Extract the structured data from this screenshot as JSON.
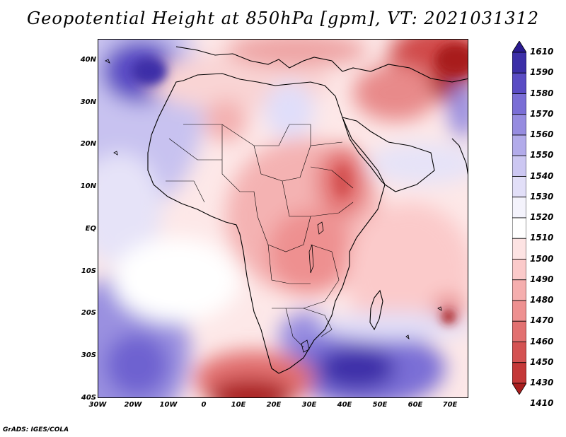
{
  "title": "Geopotential Height at 850hPa [gpm], VT: 2021031312",
  "credit": "GrADS: IGES/COLA",
  "axes": {
    "lat_labels": [
      "40N",
      "30N",
      "20N",
      "10N",
      "EQ",
      "10S",
      "20S",
      "30S",
      "40S"
    ],
    "lon_labels": [
      "30W",
      "20W",
      "10W",
      "0",
      "10E",
      "20E",
      "30E",
      "40E",
      "50E",
      "60E",
      "70E"
    ]
  },
  "colorbar": {
    "labels": [
      "1610",
      "1590",
      "1580",
      "1570",
      "1560",
      "1550",
      "1540",
      "1530",
      "1520",
      "1510",
      "1500",
      "1490",
      "1480",
      "1470",
      "1460",
      "1450",
      "1430",
      "1410"
    ],
    "colors": [
      "#2a1a90",
      "#3c2fa8",
      "#5a4cc4",
      "#7a6ed6",
      "#968ce0",
      "#b2abea",
      "#ccc7f2",
      "#e2dff8",
      "#f4f3fc",
      "#ffffff",
      "#fde3e3",
      "#fbcaca",
      "#f5aeae",
      "#ee9090",
      "#e27070",
      "#d45252",
      "#c43838",
      "#a81e1e"
    ]
  },
  "chart_data": {
    "type": "heatmap",
    "title": "Geopotential Height at 850hPa [gpm], VT: 2021031312",
    "variable": "Geopotential Height",
    "level": "850hPa",
    "units": "gpm",
    "valid_time": "2021031312",
    "lon_range": [
      -30,
      75
    ],
    "lat_range": [
      -40,
      45
    ],
    "contour_levels": [
      1410,
      1430,
      1450,
      1460,
      1470,
      1480,
      1490,
      1500,
      1510,
      1520,
      1530,
      1540,
      1550,
      1560,
      1570,
      1580,
      1590,
      1610
    ],
    "features": [
      {
        "name": "high",
        "lon": -20,
        "lat": 38,
        "value": 1580
      },
      {
        "name": "low",
        "lon": 68,
        "lat": 42,
        "value": 1450
      },
      {
        "name": "low",
        "lon": 35,
        "lat": 10,
        "value": 1480
      },
      {
        "name": "low",
        "lon": 70,
        "lat": -21,
        "value": 1430
      },
      {
        "name": "low",
        "lon": 15,
        "lat": -40,
        "value": 1410
      },
      {
        "name": "high",
        "lon": 45,
        "lat": -33,
        "value": 1590
      },
      {
        "name": "high",
        "lon": -20,
        "lat": -30,
        "value": 1560
      }
    ]
  }
}
